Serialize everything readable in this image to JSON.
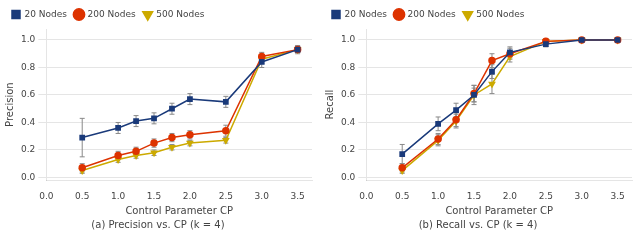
{
  "chart_data": [
    {
      "type": "line",
      "title": "(a) Precision vs. CP (k = 4)",
      "x_label": "Control Parameter CP",
      "y_label": "Precision",
      "x": [
        0.5,
        1.0,
        1.25,
        1.5,
        1.75,
        2.0,
        2.5,
        3.0,
        3.5
      ],
      "series": [
        {
          "name": "20 Nodes",
          "color": "#1a3a7a",
          "marker": "square",
          "values": [
            0.29,
            0.36,
            0.41,
            0.43,
            0.5,
            0.57,
            0.55,
            0.84,
            0.93
          ],
          "errors": [
            0.14,
            0.04,
            0.04,
            0.04,
            0.04,
            0.04,
            0.04,
            0.04,
            0.03
          ]
        },
        {
          "name": "200 Nodes",
          "color": "#dd3300",
          "marker": "circle",
          "values": [
            0.07,
            0.16,
            0.19,
            0.25,
            0.29,
            0.31,
            0.34,
            0.88,
            0.93
          ],
          "errors": [
            0.03,
            0.03,
            0.03,
            0.03,
            0.03,
            0.03,
            0.04,
            0.03,
            0.02
          ]
        },
        {
          "name": "500 Nodes",
          "color": "#ccaa00",
          "marker": "triangle_down",
          "values": [
            0.05,
            0.13,
            0.16,
            0.18,
            0.22,
            0.25,
            0.27,
            0.86,
            0.93
          ],
          "errors": [
            0.02,
            0.02,
            0.02,
            0.02,
            0.02,
            0.02,
            0.02,
            0.03,
            0.02
          ]
        }
      ],
      "xlim": [
        0.0,
        3.7
      ],
      "ylim": [
        -0.02,
        1.08
      ],
      "xticks": [
        {
          "value": 0,
          "label": "0.0"
        },
        0.5,
        {
          "value": 1.0,
          "label": "1.0"
        },
        1.5,
        {
          "value": 2.0,
          "label": "2.0"
        },
        2.5,
        {
          "value": 3.0,
          "label": "3.0"
        },
        3.5
      ],
      "yticks": [
        {
          "value": 0,
          "label": "0.0"
        },
        0.2,
        0.4,
        0.6,
        0.8,
        {
          "value": 1.0,
          "label": "1.0"
        }
      ],
      "grid": "y",
      "legend": "upper left"
    },
    {
      "type": "line",
      "title": "(b) Recall vs. CP (k = 4)",
      "x_label": "Control Parameter CP",
      "y_label": "Recall",
      "x": [
        0.5,
        1.0,
        1.25,
        1.5,
        1.75,
        2.0,
        2.5,
        3.0,
        3.5
      ],
      "series": [
        {
          "name": "20 Nodes",
          "color": "#1a3a7a",
          "marker": "square",
          "values": [
            0.17,
            0.39,
            0.49,
            0.6,
            0.77,
            0.91,
            0.97,
            1.0,
            1.0
          ],
          "errors": [
            0.07,
            0.05,
            0.05,
            0.05,
            0.05,
            0.04,
            0.02,
            0.01,
            0.0
          ]
        },
        {
          "name": "200 Nodes",
          "color": "#dd3300",
          "marker": "circle",
          "values": [
            0.07,
            0.28,
            0.42,
            0.61,
            0.85,
            0.9,
            0.99,
            1.0,
            1.0
          ],
          "errors": [
            0.03,
            0.04,
            0.05,
            0.06,
            0.05,
            0.04,
            0.02,
            0.0,
            0.0
          ]
        },
        {
          "name": "500 Nodes",
          "color": "#ccaa00",
          "marker": "triangle_down",
          "values": [
            0.05,
            0.27,
            0.41,
            0.6,
            0.68,
            0.88,
            0.99,
            1.0,
            1.0
          ],
          "errors": [
            0.02,
            0.04,
            0.05,
            0.07,
            0.07,
            0.04,
            0.01,
            0.0,
            0.0
          ]
        }
      ],
      "xlim": [
        0.0,
        3.7
      ],
      "ylim": [
        -0.02,
        1.08
      ],
      "xticks": [
        {
          "value": 0,
          "label": "0.0"
        },
        0.5,
        {
          "value": 1.0,
          "label": "1.0"
        },
        1.5,
        {
          "value": 2.0,
          "label": "2.0"
        },
        2.5,
        {
          "value": 3.0,
          "label": "3.0"
        },
        3.5
      ],
      "yticks": [
        {
          "value": 0,
          "label": "0.0"
        },
        0.2,
        0.4,
        0.6,
        0.8,
        {
          "value": 1.0,
          "label": "1.0"
        }
      ],
      "grid": "y",
      "legend": "upper left"
    }
  ]
}
